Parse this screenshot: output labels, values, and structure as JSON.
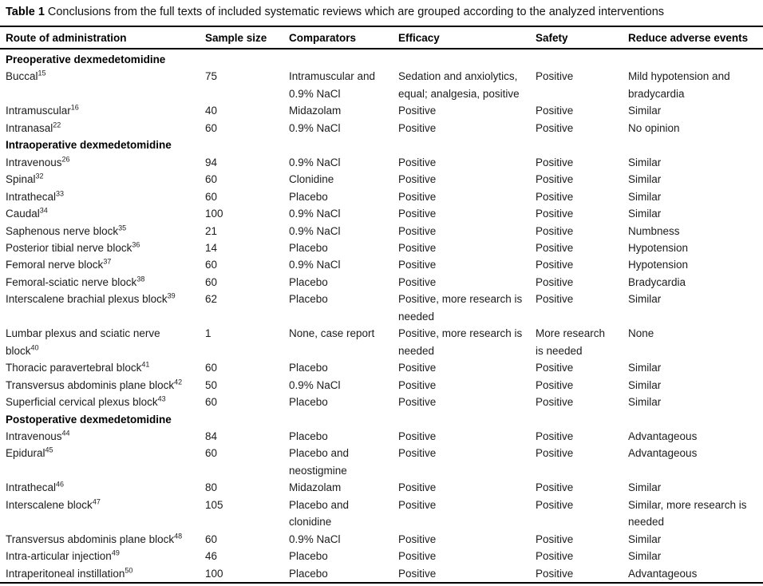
{
  "title": {
    "label": "Table 1",
    "text": "Conclusions from the full texts of included systematic reviews which are grouped according to the analyzed interventions"
  },
  "table": {
    "columns": [
      "Route of administration",
      "Sample size",
      "Comparators",
      "Efficacy",
      "Safety",
      "Reduce adverse events"
    ],
    "sections": [
      {
        "header": "Preoperative dexmedetomidine",
        "rows": [
          {
            "route": "Buccal",
            "ref": "15",
            "sample_size": "75",
            "comparators": "Intramuscular and 0.9% NaCl",
            "efficacy": "Sedation and anxiolytics, equal; analgesia, positive",
            "safety": "Positive",
            "reduce_adverse_events": "Mild hypotension and bradycardia"
          },
          {
            "route": "Intramuscular",
            "ref": "16",
            "sample_size": "40",
            "comparators": "Midazolam",
            "efficacy": "Positive",
            "safety": "Positive",
            "reduce_adverse_events": "Similar"
          },
          {
            "route": "Intranasal",
            "ref": "22",
            "sample_size": "60",
            "comparators": "0.9% NaCl",
            "efficacy": "Positive",
            "safety": "Positive",
            "reduce_adverse_events": "No opinion"
          }
        ]
      },
      {
        "header": "Intraoperative dexmedetomidine",
        "rows": [
          {
            "route": "Intravenous",
            "ref": "26",
            "sample_size": "94",
            "comparators": "0.9% NaCl",
            "efficacy": "Positive",
            "safety": "Positive",
            "reduce_adverse_events": "Similar"
          },
          {
            "route": "Spinal",
            "ref": "32",
            "sample_size": "60",
            "comparators": "Clonidine",
            "efficacy": "Positive",
            "safety": "Positive",
            "reduce_adverse_events": "Similar"
          },
          {
            "route": "Intrathecal",
            "ref": "33",
            "sample_size": "60",
            "comparators": "Placebo",
            "efficacy": "Positive",
            "safety": "Positive",
            "reduce_adverse_events": "Similar"
          },
          {
            "route": "Caudal",
            "ref": "34",
            "sample_size": "100",
            "comparators": "0.9% NaCl",
            "efficacy": "Positive",
            "safety": "Positive",
            "reduce_adverse_events": "Similar"
          },
          {
            "route": "Saphenous nerve block",
            "ref": "35",
            "sample_size": "21",
            "comparators": "0.9% NaCl",
            "efficacy": "Positive",
            "safety": "Positive",
            "reduce_adverse_events": "Numbness"
          },
          {
            "route": "Posterior tibial nerve block",
            "ref": "36",
            "sample_size": "14",
            "comparators": "Placebo",
            "efficacy": "Positive",
            "safety": "Positive",
            "reduce_adverse_events": "Hypotension"
          },
          {
            "route": "Femoral nerve block",
            "ref": "37",
            "sample_size": "60",
            "comparators": "0.9% NaCl",
            "efficacy": "Positive",
            "safety": "Positive",
            "reduce_adverse_events": "Hypotension"
          },
          {
            "route": "Femoral-sciatic nerve block",
            "ref": "38",
            "sample_size": "60",
            "comparators": "Placebo",
            "efficacy": "Positive",
            "safety": "Positive",
            "reduce_adverse_events": "Bradycardia"
          },
          {
            "route": "Interscalene brachial plexus block",
            "ref": "39",
            "sample_size": "62",
            "comparators": "Placebo",
            "efficacy": "Positive, more research is needed",
            "safety": "Positive",
            "reduce_adverse_events": "Similar"
          },
          {
            "route": "Lumbar plexus and sciatic nerve block",
            "ref": "40",
            "sample_size": "1",
            "comparators": "None, case report",
            "efficacy": "Positive, more research is needed",
            "safety": "More research is needed",
            "reduce_adverse_events": "None"
          },
          {
            "route": "Thoracic paravertebral block",
            "ref": "41",
            "sample_size": "60",
            "comparators": "Placebo",
            "efficacy": "Positive",
            "safety": "Positive",
            "reduce_adverse_events": "Similar"
          },
          {
            "route": "Transversus abdominis plane block",
            "ref": "42",
            "sample_size": "50",
            "comparators": "0.9% NaCl",
            "efficacy": "Positive",
            "safety": "Positive",
            "reduce_adverse_events": "Similar"
          },
          {
            "route": "Superficial cervical plexus block",
            "ref": "43",
            "sample_size": "60",
            "comparators": "Placebo",
            "efficacy": "Positive",
            "safety": "Positive",
            "reduce_adverse_events": "Similar"
          }
        ]
      },
      {
        "header": "Postoperative dexmedetomidine",
        "rows": [
          {
            "route": "Intravenous",
            "ref": "44",
            "sample_size": "84",
            "comparators": "Placebo",
            "efficacy": "Positive",
            "safety": "Positive",
            "reduce_adverse_events": "Advantageous"
          },
          {
            "route": "Epidural",
            "ref": "45",
            "sample_size": "60",
            "comparators": "Placebo and neostigmine",
            "efficacy": "Positive",
            "safety": "Positive",
            "reduce_adverse_events": "Advantageous"
          },
          {
            "route": "Intrathecal",
            "ref": "46",
            "sample_size": "80",
            "comparators": "Midazolam",
            "efficacy": "Positive",
            "safety": "Positive",
            "reduce_adverse_events": "Similar"
          },
          {
            "route": "Interscalene block",
            "ref": "47",
            "sample_size": "105",
            "comparators": "Placebo and clonidine",
            "efficacy": "Positive",
            "safety": "Positive",
            "reduce_adverse_events": "Similar, more research is needed"
          },
          {
            "route": "Transversus abdominis plane block",
            "ref": "48",
            "sample_size": "60",
            "comparators": "0.9% NaCl",
            "efficacy": "Positive",
            "safety": "Positive",
            "reduce_adverse_events": "Similar"
          },
          {
            "route": "Intra-articular injection",
            "ref": "49",
            "sample_size": "46",
            "comparators": "Placebo",
            "efficacy": "Positive",
            "safety": "Positive",
            "reduce_adverse_events": "Similar"
          },
          {
            "route": "Intraperitoneal instillation",
            "ref": "50",
            "sample_size": "100",
            "comparators": "Placebo",
            "efficacy": "Positive",
            "safety": "Positive",
            "reduce_adverse_events": "Advantageous"
          }
        ]
      }
    ]
  }
}
